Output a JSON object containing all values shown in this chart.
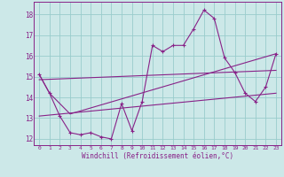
{
  "xlabel": "Windchill (Refroidissement éolien,°C)",
  "bg_color": "#cce8e8",
  "line_color": "#882288",
  "grid_color": "#99cccc",
  "xlim": [
    -0.5,
    23.5
  ],
  "ylim": [
    11.7,
    18.6
  ],
  "yticks": [
    12,
    13,
    14,
    15,
    16,
    17,
    18
  ],
  "xticks": [
    0,
    1,
    2,
    3,
    4,
    5,
    6,
    7,
    8,
    9,
    10,
    11,
    12,
    13,
    14,
    15,
    16,
    17,
    18,
    19,
    20,
    21,
    22,
    23
  ],
  "main_x": [
    0,
    1,
    2,
    3,
    4,
    5,
    6,
    7,
    8,
    9,
    10,
    11,
    12,
    13,
    14,
    15,
    16,
    17,
    18,
    19,
    20,
    21,
    22,
    23
  ],
  "main_y": [
    15.1,
    14.2,
    13.1,
    12.3,
    12.2,
    12.3,
    12.1,
    12.0,
    13.7,
    12.4,
    13.8,
    16.5,
    16.2,
    16.5,
    16.5,
    17.3,
    18.2,
    17.8,
    15.9,
    15.2,
    14.2,
    13.8,
    14.5,
    16.1
  ],
  "line2_x": [
    0,
    1,
    3,
    23
  ],
  "line2_y": [
    15.1,
    14.2,
    13.2,
    16.1
  ],
  "line3_x": [
    0,
    23
  ],
  "line3_y": [
    13.1,
    14.2
  ],
  "line4_x": [
    0,
    23
  ],
  "line4_y": [
    14.85,
    15.3
  ]
}
